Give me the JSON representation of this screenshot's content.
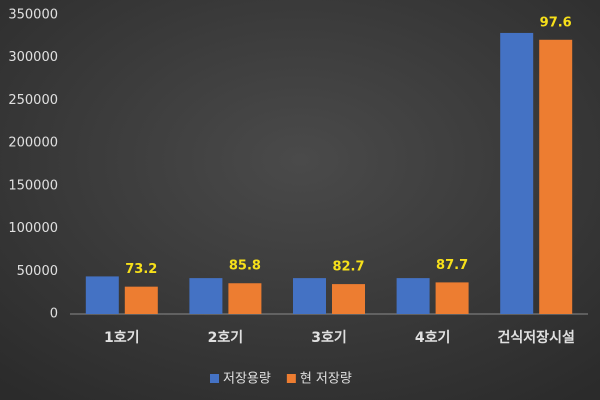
{
  "chart_data": {
    "type": "bar",
    "categories": [
      "1호기",
      "2호기",
      "3호기",
      "4호기",
      "건식저장시설"
    ],
    "series": [
      {
        "name": "저장용량",
        "color": "#4472c4",
        "values": [
          44000,
          42000,
          42000,
          42000,
          329000
        ]
      },
      {
        "name": "현 저장량",
        "color": "#ed7d31",
        "values": [
          32000,
          36000,
          35000,
          37000,
          321000
        ]
      }
    ],
    "annotations": [
      "73.2",
      "85.8",
      "82.7",
      "87.7",
      "97.6"
    ],
    "ylim": [
      0,
      350000
    ],
    "yticks": [
      0,
      50000,
      100000,
      150000,
      200000,
      250000,
      300000,
      350000
    ],
    "grid": false,
    "legend": "bottom"
  }
}
